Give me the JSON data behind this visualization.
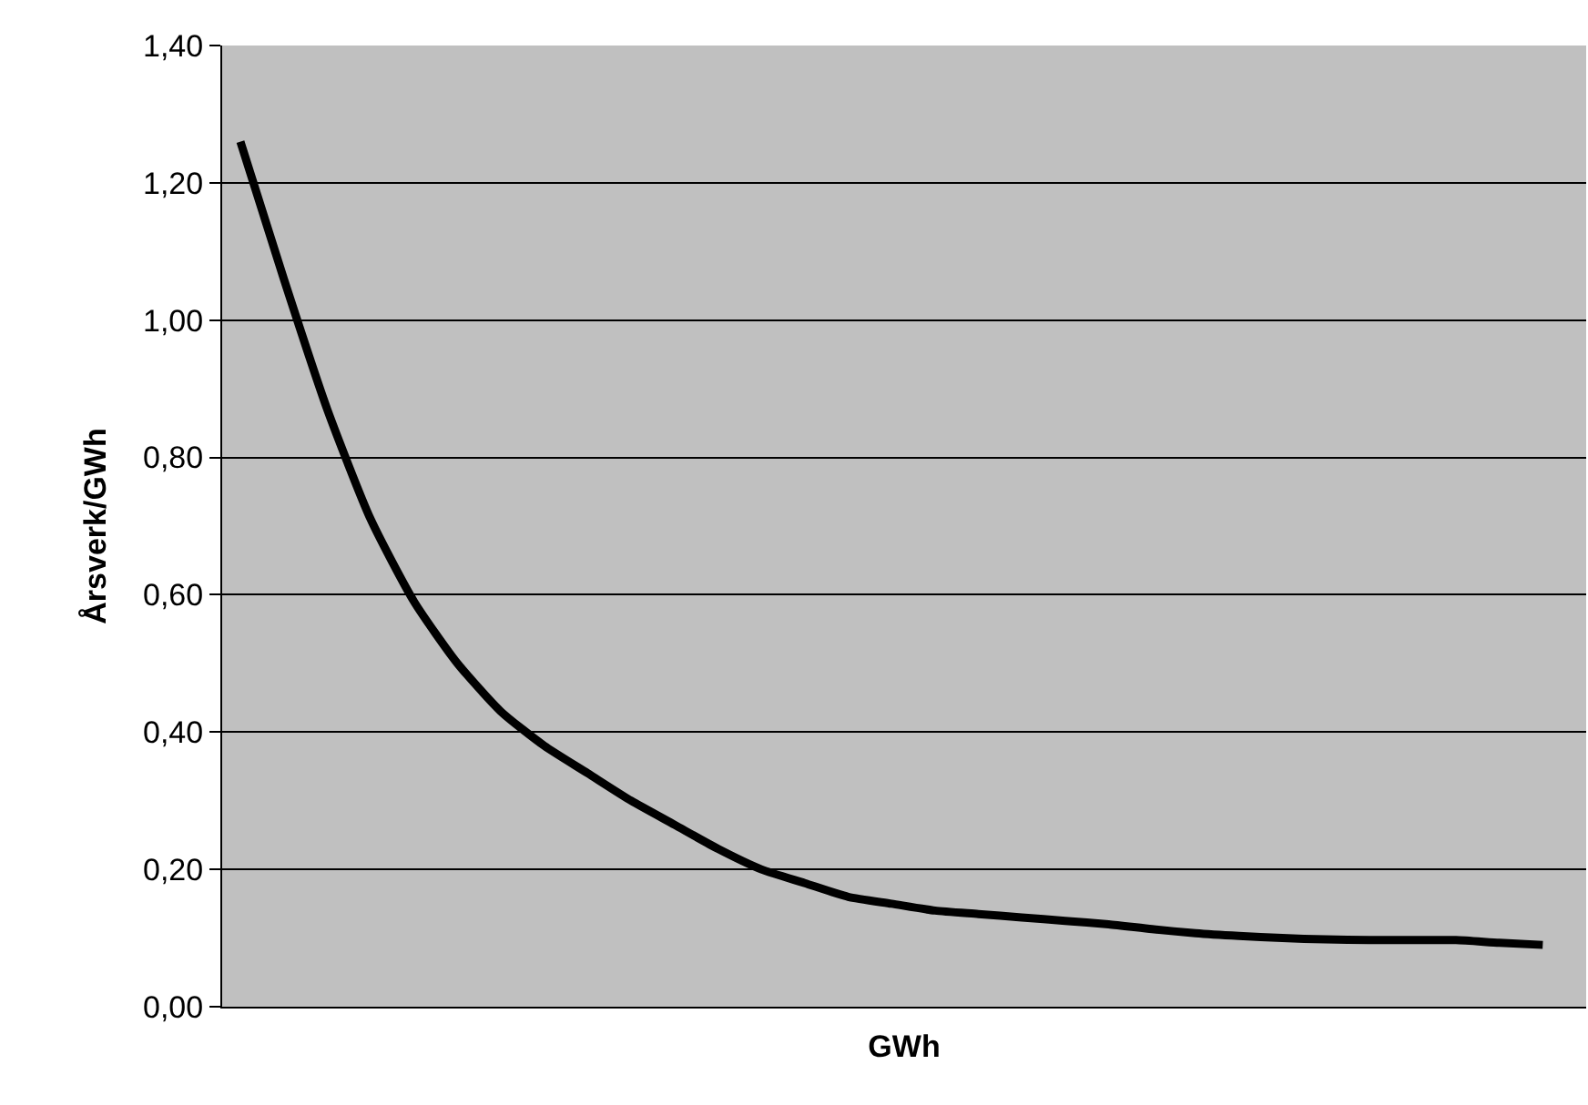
{
  "chart_data": {
    "type": "line",
    "xlabel": "GWh",
    "ylabel": "Årsverk/GWh",
    "categories": [
      null,
      null,
      null,
      null,
      null,
      null,
      null,
      null,
      null,
      null,
      null,
      null,
      null,
      null,
      null,
      null,
      null,
      null,
      null,
      null,
      null,
      null,
      null,
      null,
      null,
      null,
      null,
      null,
      null,
      null,
      null
    ],
    "series": [
      {
        "color": "#000000",
        "values": [
          1.26,
          1.06,
          0.87,
          0.71,
          0.59,
          0.5,
          0.43,
          0.38,
          0.34,
          0.3,
          0.265,
          0.23,
          0.2,
          0.18,
          0.16,
          0.15,
          0.14,
          0.135,
          0.13,
          0.125,
          0.12,
          0.113,
          0.107,
          0.103,
          0.1,
          0.098,
          0.097,
          0.097,
          0.097,
          0.093,
          0.09
        ]
      }
    ],
    "ylim": [
      0,
      1.4
    ],
    "yticks": [
      {
        "value": 0,
        "label": "0,00"
      },
      {
        "value": 0.2,
        "label": "0,20"
      },
      {
        "value": 0.4,
        "label": "0,40"
      },
      {
        "value": 0.6,
        "label": "0,60"
      },
      {
        "value": 0.8,
        "label": "0,80"
      },
      {
        "value": 1.0,
        "label": "1,00"
      },
      {
        "value": 1.2,
        "label": "1,20"
      },
      {
        "value": 1.4,
        "label": "1,40"
      }
    ],
    "grid": "y",
    "legend": false,
    "marker": "none",
    "line_style": "solid",
    "tick_labels": "y"
  }
}
